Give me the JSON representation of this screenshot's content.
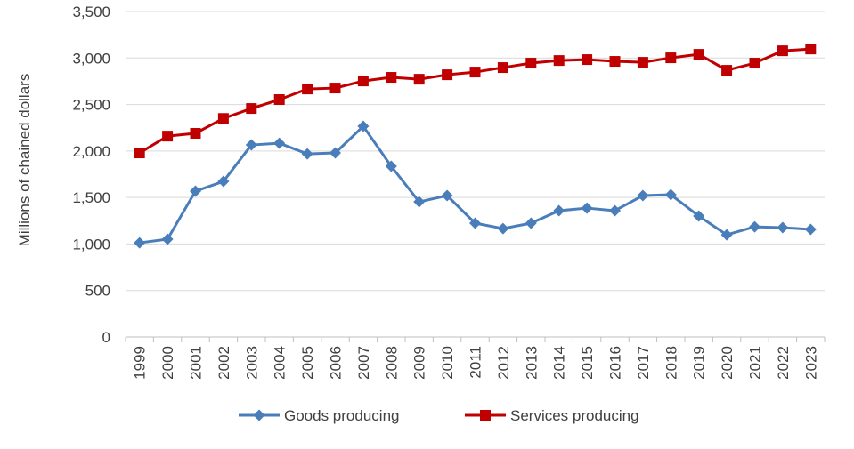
{
  "chart_data": {
    "type": "line",
    "title": "",
    "xlabel": "",
    "ylabel": "Millions of chained dollars",
    "ylim": [
      0,
      3500
    ],
    "yticks": [
      0,
      500,
      1000,
      1500,
      2000,
      2500,
      3000,
      3500
    ],
    "ytick_labels": [
      "0",
      "500",
      "1,000",
      "1,500",
      "2,000",
      "2,500",
      "3,000",
      "3,500"
    ],
    "grid": "horizontal",
    "legend_position": "bottom",
    "x": [
      "1999",
      "2000",
      "2001",
      "2002",
      "2003",
      "2004",
      "2005",
      "2006",
      "2007",
      "2008",
      "2009",
      "2010",
      "2011",
      "2012",
      "2013",
      "2014",
      "2015",
      "2016",
      "2017",
      "2018",
      "2019",
      "2020",
      "2021",
      "2022",
      "2023"
    ],
    "series": [
      {
        "name": "Goods producing",
        "color": "#4a7ebb",
        "marker": "diamond",
        "values": [
          1013,
          1052,
          1568,
          1673,
          2065,
          2084,
          1969,
          1979,
          2266,
          1836,
          1453,
          1520,
          1224,
          1166,
          1224,
          1358,
          1386,
          1358,
          1520,
          1530,
          1300,
          1099,
          1185,
          1176,
          1157
        ]
      },
      {
        "name": "Services producing",
        "color": "#c00000",
        "marker": "square",
        "values": [
          1979,
          2160,
          2190,
          2350,
          2457,
          2553,
          2667,
          2677,
          2753,
          2792,
          2772,
          2820,
          2849,
          2897,
          2945,
          2973,
          2983,
          2964,
          2954,
          3002,
          3040,
          2868,
          2945,
          3078,
          3097
        ]
      }
    ]
  }
}
